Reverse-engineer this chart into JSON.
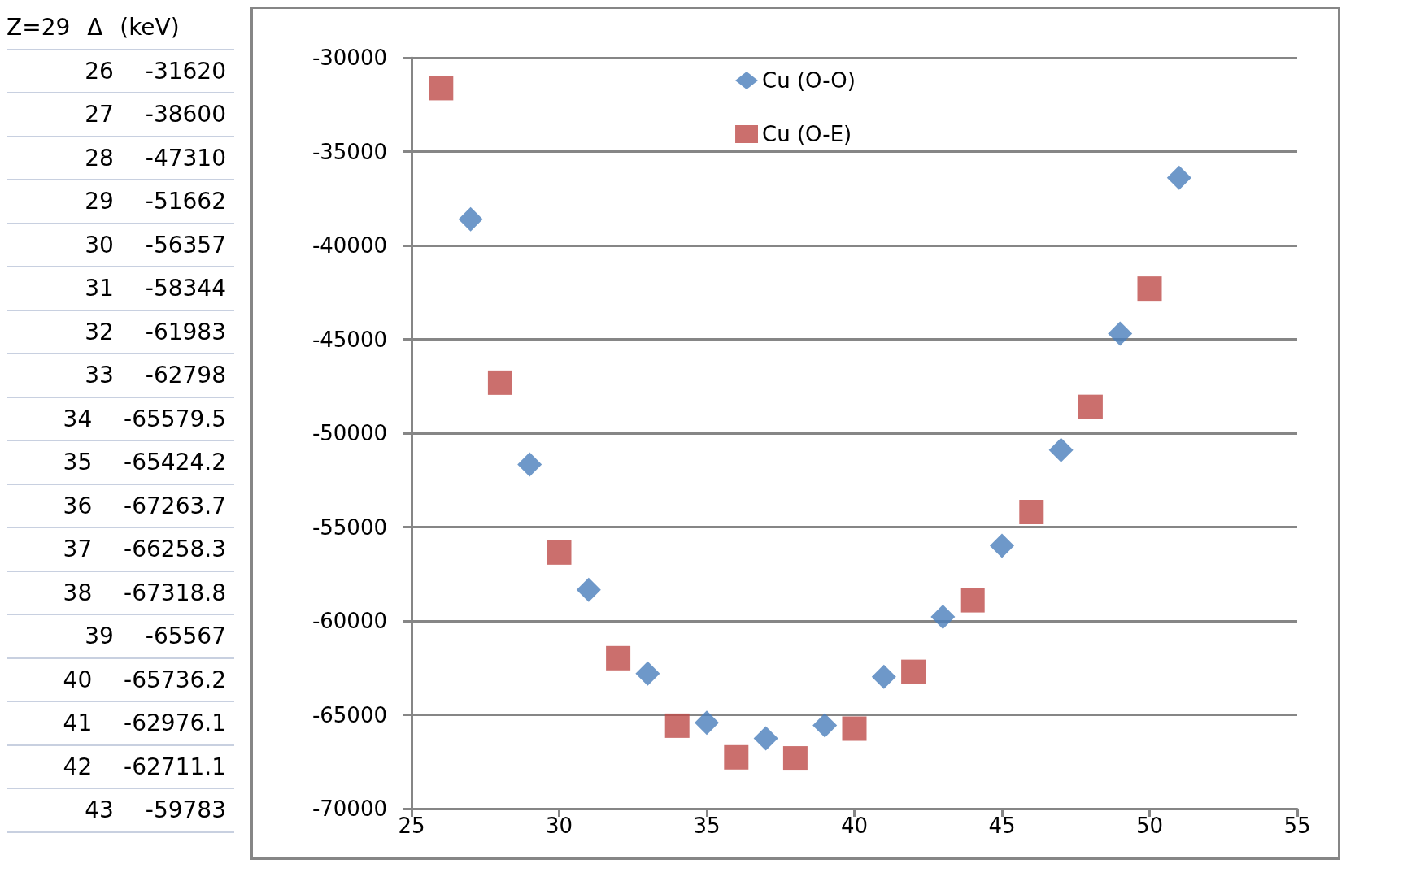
{
  "chart_data": [
    {
      "type": "other",
      "annotations": [
        "Z=29 Δ (keV)",
        "26 -31620",
        "27 -38600",
        "28 -47310",
        "29 -51662",
        "30 -56357",
        "31 -58344",
        "32 -61983",
        "33 -62798",
        "34 -65579.5",
        "35 -65424.2",
        "36 -67263.7",
        "37 -66258.3",
        "38 -67318.8",
        "39 -65567",
        "40 -65736.2",
        "41 -62976.1",
        "42 -62711.1",
        "43 -59783"
      ]
    },
    {
      "type": "scatter",
      "xlim": [
        25,
        55
      ],
      "xticks": [
        25,
        30,
        35,
        40,
        45,
        50,
        55
      ],
      "ylim": [
        -70000,
        -30000
      ],
      "yticks": [
        -70000,
        -65000,
        -60000,
        -55000,
        -50000,
        -45000,
        -40000,
        -35000,
        -30000
      ],
      "grid": "y",
      "legend": "top",
      "series": [
        {
          "name": "Cu (O-O)",
          "color": "#4a7ebb",
          "marker": "diamond",
          "x": [
            27,
            29,
            31,
            33,
            35,
            37,
            39,
            41,
            43,
            45,
            47,
            49,
            51
          ],
          "values": [
            -38600,
            -51662,
            -58344,
            -62798,
            -65424.2,
            -66258.3,
            -65567,
            -62976.1,
            -59783,
            -56000,
            -50900,
            -44700,
            -36400
          ]
        },
        {
          "name": "Cu (O-E)",
          "color": "#be4b48",
          "marker": "square",
          "x": [
            26,
            28,
            30,
            32,
            34,
            36,
            38,
            40,
            42,
            44,
            46,
            48,
            50
          ],
          "values": [
            -31620,
            -47310,
            -56357,
            -61983,
            -65579.5,
            -67263.7,
            -67318.8,
            -65736.2,
            -62711.1,
            -58900,
            -54200,
            -48600,
            -42300
          ]
        }
      ]
    }
  ]
}
